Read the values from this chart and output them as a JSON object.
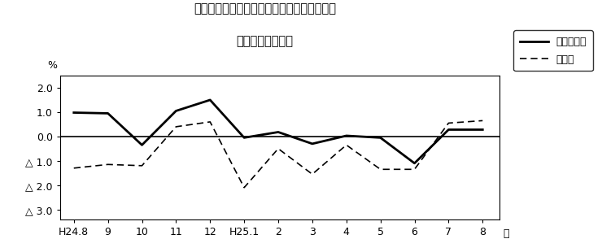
{
  "title_line1": "第３図　常用雇用指数　対前年同月比の推移",
  "title_line2": "（規横５人以上）",
  "xlabel": "月",
  "ylabel": "%",
  "x_labels": [
    "H24.8",
    "9",
    "10",
    "11",
    "12",
    "H25.1",
    "2",
    "3",
    "4",
    "5",
    "6",
    "7",
    "8"
  ],
  "series1_name": "調査産業計",
  "series2_name": "製造業",
  "series1_values": [
    0.98,
    0.95,
    -0.35,
    1.05,
    1.5,
    -0.05,
    0.18,
    -0.3,
    0.03,
    -0.05,
    -1.1,
    0.28,
    0.28
  ],
  "series2_values": [
    -1.3,
    -1.15,
    -1.2,
    0.4,
    0.6,
    -2.1,
    -0.5,
    -1.55,
    -0.35,
    -1.35,
    -1.35,
    0.55,
    0.65
  ],
  "yticks": [
    2.0,
    1.0,
    0.0,
    -1.0,
    -2.0,
    -3.0
  ],
  "ytick_labels": [
    "2.0",
    "1.0",
    "0.0",
    "△ 1.0",
    "△ 2.0",
    "△ 3.0"
  ],
  "ylim": [
    -3.4,
    2.5
  ],
  "xlim_left": -0.4,
  "xlim_right": 12.5,
  "background_color": "#ffffff",
  "line1_color": "#000000",
  "line2_color": "#000000",
  "zero_line_color": "#000000",
  "title_fontsize": 10.5,
  "tick_fontsize": 9,
  "legend_fontsize": 9
}
